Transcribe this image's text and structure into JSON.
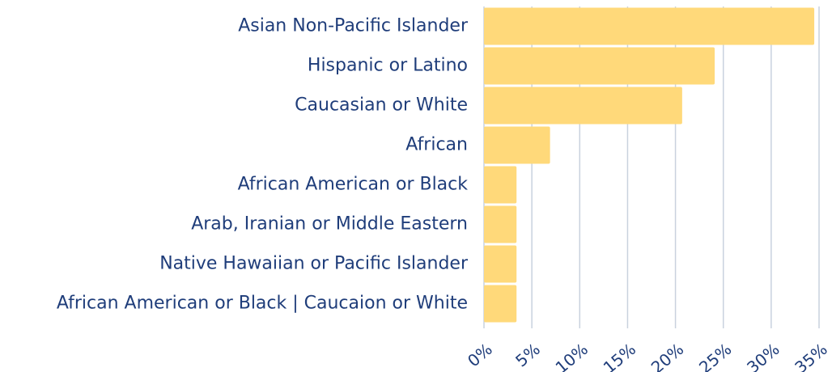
{
  "chart_data": {
    "type": "hbar",
    "categories": [
      "Asian Non-Pacific Islander",
      "Hispanic or Latino",
      "Caucasian or White",
      "African",
      "African American or Black",
      "Arab, Iranian or Middle Eastern",
      "Native Hawaiian or Pacific Islander",
      "African American or Black | Caucaion or White"
    ],
    "values": [
      34.5,
      24.1,
      20.7,
      6.9,
      3.4,
      3.4,
      3.4,
      3.4
    ],
    "color": "#ffd97a",
    "xlim": [
      0,
      35
    ],
    "xticks": [
      {
        "value": 0,
        "label": "0%"
      },
      {
        "value": 5,
        "label": "5%"
      },
      {
        "value": 10,
        "label": "10%"
      },
      {
        "value": 15,
        "label": "15%"
      },
      {
        "value": 20,
        "label": "20%"
      },
      {
        "value": 25,
        "label": "25%"
      },
      {
        "value": 30,
        "label": "30%"
      },
      {
        "value": 35,
        "label": "35%"
      }
    ],
    "grid": true
  }
}
